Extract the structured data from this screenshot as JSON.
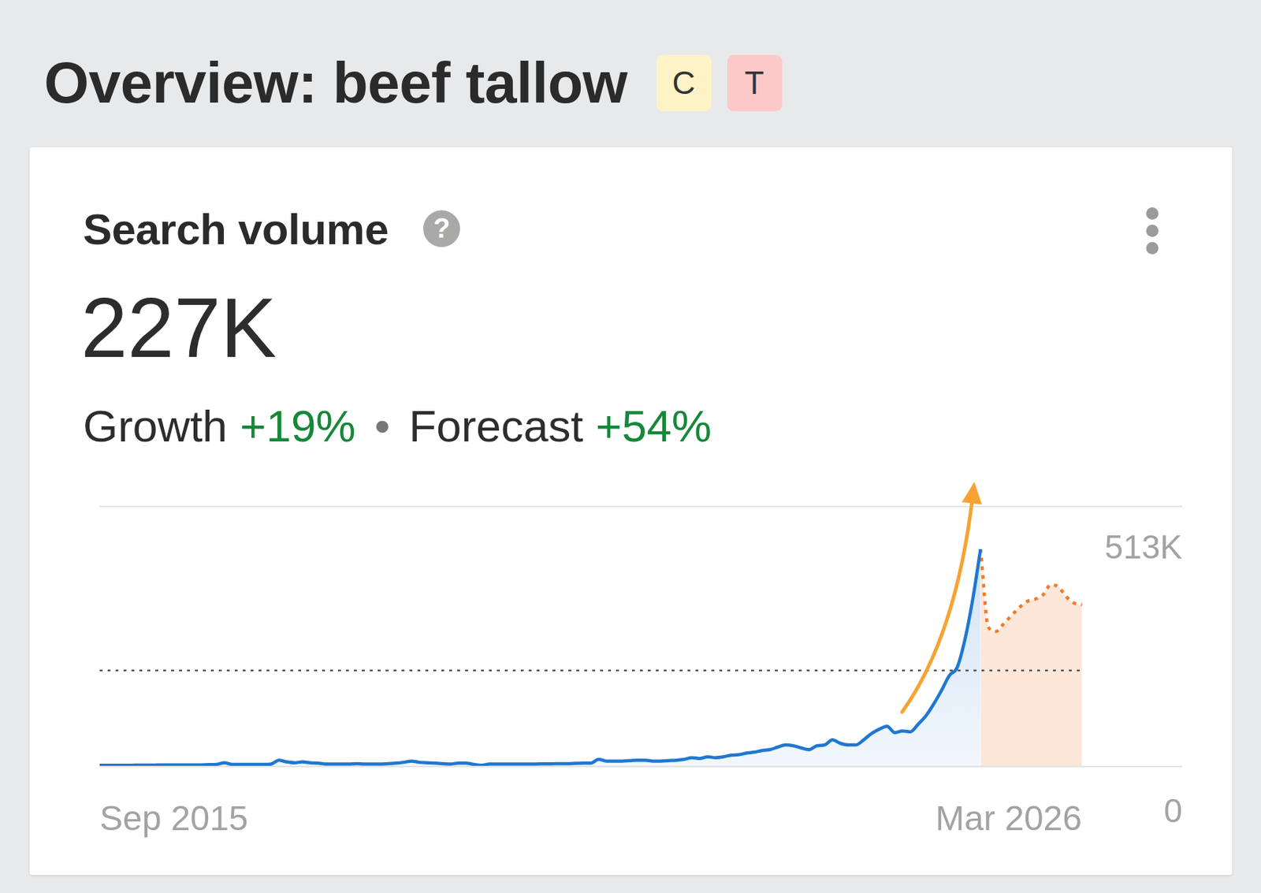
{
  "chart_data": {
    "type": "line",
    "title": "Overview: beef tallow",
    "badges": [
      {
        "label": "C",
        "color": "#fdf3c6"
      },
      {
        "label": "T",
        "color": "#fdc8c8"
      }
    ],
    "subtitle": "Search volume",
    "help": "?",
    "headline": "227K",
    "annotations": [
      {
        "label": "Growth",
        "value": "+19%"
      },
      {
        "label": "Forecast",
        "value": "+54%"
      }
    ],
    "separator": "•",
    "categories": [
      "Sep 2015",
      null,
      null,
      null,
      null,
      null,
      null,
      null,
      null,
      null,
      null,
      null,
      null,
      null,
      null,
      null,
      null,
      null,
      null,
      null,
      null,
      null,
      null,
      null,
      null,
      null,
      null,
      null,
      null,
      null,
      null,
      null,
      null,
      null,
      null,
      null,
      null,
      null,
      null,
      null,
      null,
      null,
      null,
      null,
      null,
      null,
      null,
      null,
      null,
      null,
      null,
      null,
      null,
      null,
      null,
      null,
      null,
      null,
      null,
      null,
      null,
      null,
      null,
      null,
      null,
      null,
      null,
      null,
      null,
      null,
      null,
      null,
      null,
      null,
      null,
      null,
      null,
      null,
      null,
      null,
      null,
      null,
      null,
      null,
      null,
      null,
      null,
      null,
      null,
      null,
      null,
      null,
      null,
      null,
      null,
      null,
      null,
      null,
      null,
      null,
      null,
      null,
      null,
      null,
      null,
      null,
      null,
      null,
      null,
      null,
      null,
      null,
      null,
      null,
      null,
      null,
      null,
      null,
      null,
      null,
      null,
      null,
      null,
      null,
      null,
      null,
      "Mar 2026"
    ],
    "series": [
      {
        "type": "area",
        "color": "#1f78d1",
        "line_style": "solid",
        "values": [
          3000,
          3000,
          3000,
          3000,
          3000,
          3500,
          3500,
          3500,
          4000,
          4000,
          4000,
          4000,
          4000,
          4000,
          4500,
          5000,
          9000,
          5000,
          5000,
          5000,
          5000,
          5000,
          6000,
          15000,
          11000,
          9000,
          11000,
          9000,
          8000,
          6000,
          6000,
          6000,
          6000,
          7000,
          6000,
          6000,
          6000,
          7000,
          8000,
          10000,
          13000,
          10000,
          9000,
          8000,
          7000,
          6000,
          8000,
          8000,
          5000,
          3000,
          6000,
          6000,
          6000,
          6000,
          6000,
          6000,
          6000,
          6500,
          6500,
          7000,
          7000,
          7500,
          8000,
          8000,
          17000,
          13000,
          13000,
          13000,
          14000,
          15000,
          15000,
          13000,
          13000,
          14000,
          15000,
          17000,
          21000,
          19000,
          23000,
          21000,
          23000,
          27000,
          28000,
          32000,
          34000,
          38000,
          40000,
          46000,
          51000,
          49000,
          44000,
          40000,
          49000,
          51000,
          63000,
          55000,
          51000,
          51000,
          63000,
          78000,
          88000,
          95000,
          80000,
          84000,
          82000,
          100000,
          120000,
          148000,
          180000,
          215000,
          234000,
          300000,
          395000,
          513000,
          null,
          null,
          null,
          null,
          null,
          null,
          null,
          null,
          null,
          null,
          null,
          null,
          null
        ]
      },
      {
        "type": "area",
        "color": "#f47a2c",
        "line_style": "dotted",
        "values": [
          null,
          null,
          null,
          null,
          null,
          null,
          null,
          null,
          null,
          null,
          null,
          null,
          null,
          null,
          null,
          null,
          null,
          null,
          null,
          null,
          null,
          null,
          null,
          null,
          null,
          null,
          null,
          null,
          null,
          null,
          null,
          null,
          null,
          null,
          null,
          null,
          null,
          null,
          null,
          null,
          null,
          null,
          null,
          null,
          null,
          null,
          null,
          null,
          null,
          null,
          null,
          null,
          null,
          null,
          null,
          null,
          null,
          null,
          null,
          null,
          null,
          null,
          null,
          null,
          null,
          null,
          null,
          null,
          null,
          null,
          null,
          null,
          null,
          null,
          null,
          null,
          null,
          null,
          null,
          null,
          null,
          null,
          null,
          null,
          null,
          null,
          null,
          null,
          null,
          null,
          null,
          null,
          null,
          null,
          null,
          null,
          null,
          null,
          null,
          null,
          null,
          null,
          null,
          null,
          null,
          null,
          null,
          null,
          null,
          null,
          null,
          null,
          null,
          513000,
          329000,
          319000,
          338000,
          357000,
          376000,
          390000,
          395000,
          405000,
          429000,
          424000,
          401000,
          386000,
          382000
        ]
      }
    ],
    "reference_line": {
      "value": 227000,
      "line_style": "dotted",
      "color": "#555555"
    },
    "ylim": [
      0,
      614000
    ],
    "yticks": [
      0,
      {
        "value": 513000,
        "label": "513K"
      }
    ],
    "grid": false
  }
}
